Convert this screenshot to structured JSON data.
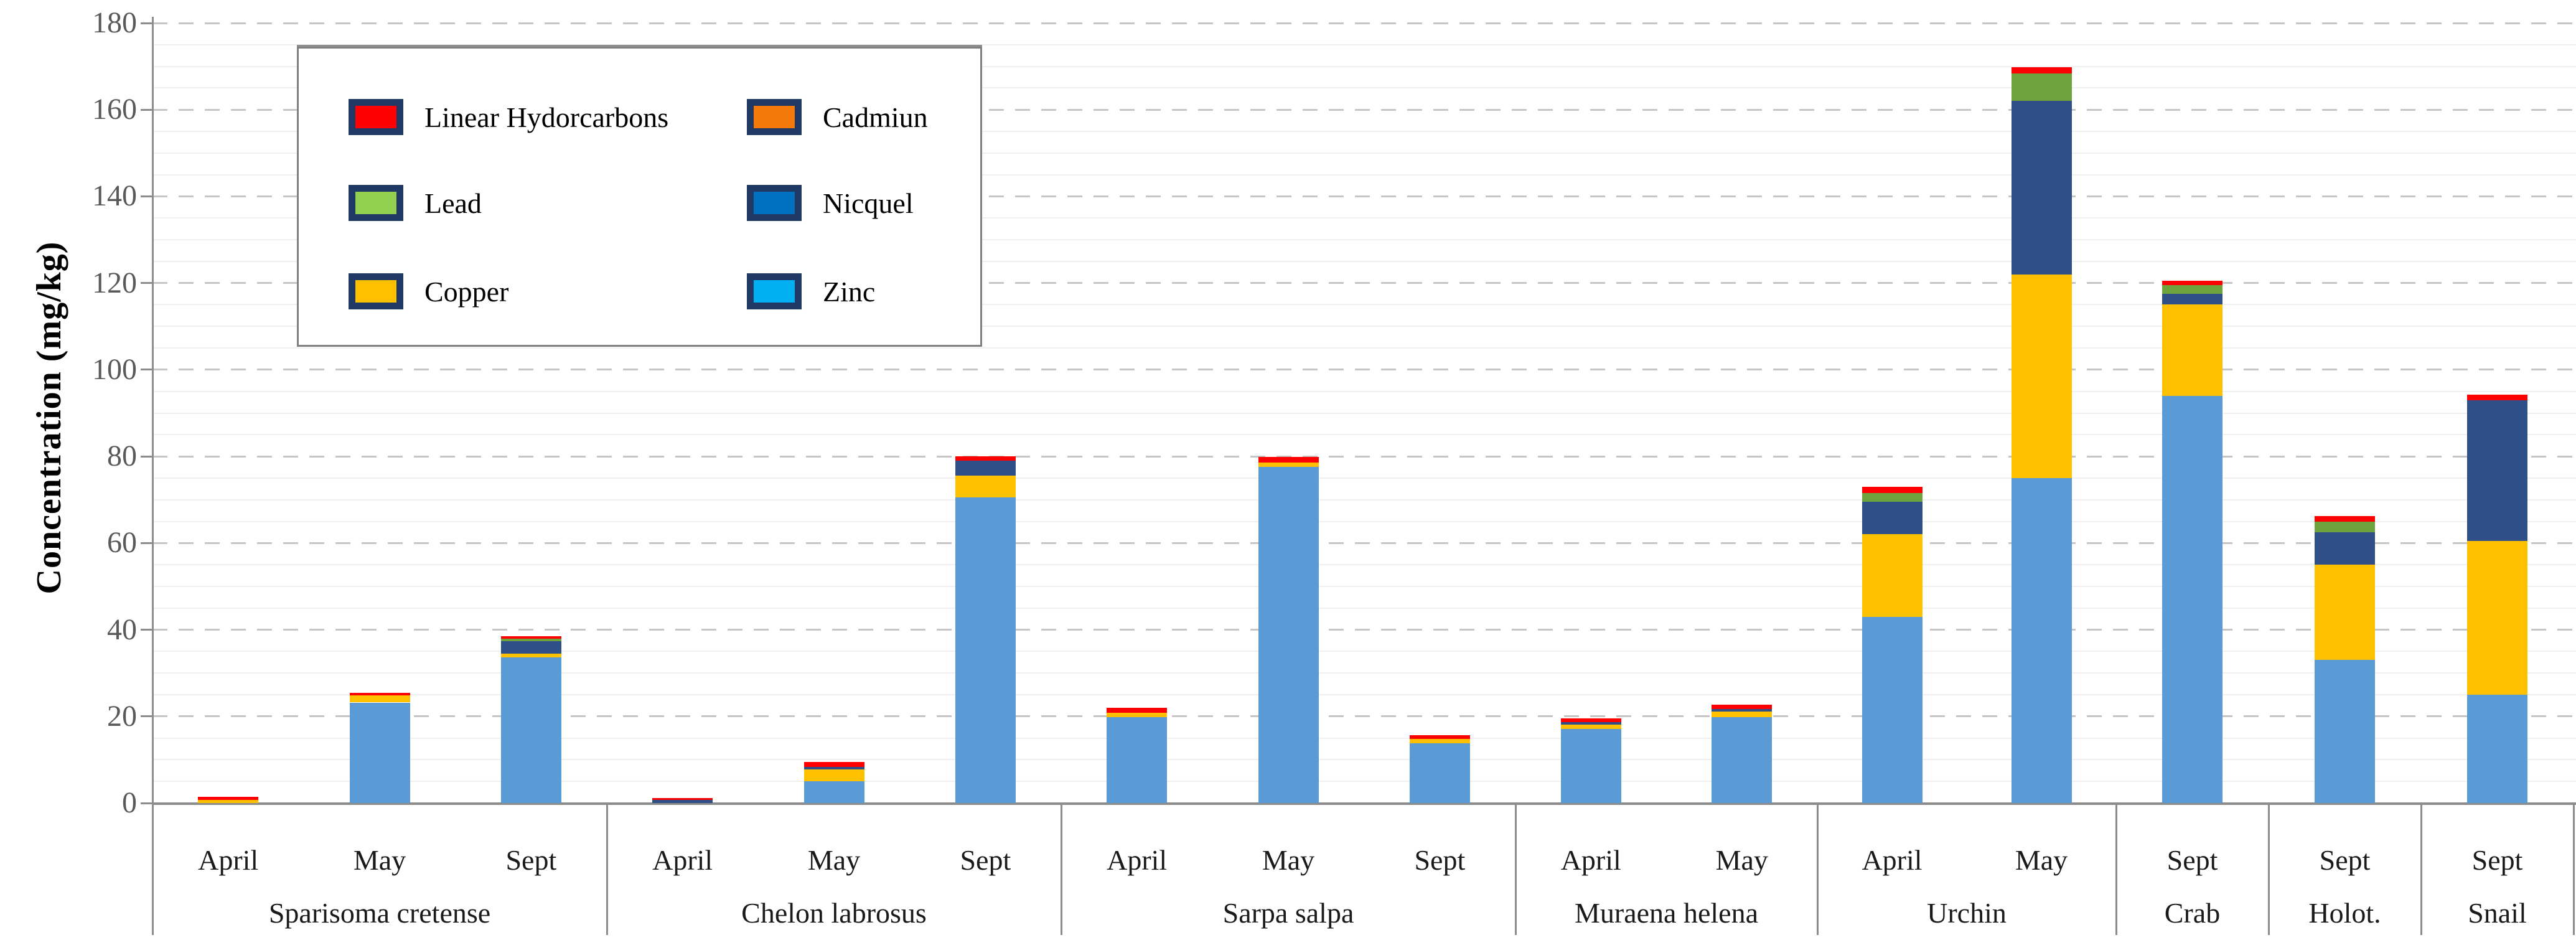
{
  "chart_data": {
    "type": "bar",
    "stacked": true,
    "title": "",
    "xlabel": "",
    "ylabel": "Concentration (mg/kg)",
    "ylim": [
      0,
      180
    ],
    "yticks": [
      0,
      20,
      40,
      60,
      80,
      100,
      120,
      140,
      160,
      180
    ],
    "grid": "horizontal; faint minor lines every 5, gray dashed major lines every 20",
    "legend_position": "top-left inside plot area",
    "stack_order": [
      "zinc",
      "copper",
      "nicquel",
      "lead",
      "cadmiun",
      "linear_hydrocarbons"
    ],
    "series_labels": {
      "linear_hydrocarbons": "Linear Hydorcarbons",
      "cadmiun": "Cadmiun",
      "lead": "Lead",
      "nicquel": "Nicquel",
      "copper": "Copper",
      "zinc": "Zinc"
    },
    "groups": [
      {
        "label": "Sparisoma cretense",
        "bars": [
          {
            "month": "April",
            "values": {
              "zinc": 0,
              "copper": 0.7,
              "nicquel": 0,
              "lead": 0,
              "cadmiun": 0,
              "linear_hydrocarbons": 0.7
            }
          },
          {
            "month": "May",
            "values": {
              "zinc": 23.2,
              "copper": 1.7,
              "nicquel": 0,
              "lead": 0,
              "cadmiun": 0,
              "linear_hydrocarbons": 0.5
            }
          },
          {
            "month": "Sept",
            "values": {
              "zinc": 33.6,
              "copper": 0.9,
              "nicquel": 2.9,
              "lead": 0.5,
              "cadmiun": 0,
              "linear_hydrocarbons": 0.6
            }
          }
        ]
      },
      {
        "label": "Chelon labrosus",
        "bars": [
          {
            "month": "April",
            "values": {
              "zinc": 0,
              "copper": 0,
              "nicquel": 0.7,
              "lead": 0,
              "cadmiun": 0,
              "linear_hydrocarbons": 0.4
            }
          },
          {
            "month": "May",
            "values": {
              "zinc": 5.0,
              "copper": 2.8,
              "nicquel": 0.5,
              "lead": 0,
              "cadmiun": 0,
              "linear_hydrocarbons": 1.2
            }
          },
          {
            "month": "Sept",
            "values": {
              "zinc": 70.5,
              "copper": 5.0,
              "nicquel": 3.5,
              "lead": 0,
              "cadmiun": 0,
              "linear_hydrocarbons": 1.0
            }
          }
        ]
      },
      {
        "label": "Sarpa salpa",
        "bars": [
          {
            "month": "April",
            "values": {
              "zinc": 19.8,
              "copper": 1.0,
              "nicquel": 0,
              "lead": 0,
              "cadmiun": 0,
              "linear_hydrocarbons": 1.2
            }
          },
          {
            "month": "May",
            "values": {
              "zinc": 77.6,
              "copper": 1.0,
              "nicquel": 0,
              "lead": 0,
              "cadmiun": 0,
              "linear_hydrocarbons": 1.3
            }
          },
          {
            "month": "Sept",
            "values": {
              "zinc": 13.8,
              "copper": 1.0,
              "nicquel": 0,
              "lead": 0,
              "cadmiun": 0,
              "linear_hydrocarbons": 0.9
            }
          }
        ]
      },
      {
        "label": "Muraena helena",
        "bars": [
          {
            "month": "April",
            "values": {
              "zinc": 17.1,
              "copper": 1.0,
              "nicquel": 0.6,
              "lead": 0,
              "cadmiun": 0,
              "linear_hydrocarbons": 0.9
            }
          },
          {
            "month": "May",
            "values": {
              "zinc": 19.8,
              "copper": 1.3,
              "nicquel": 0.6,
              "lead": 0,
              "cadmiun": 0,
              "linear_hydrocarbons": 1.0
            }
          }
        ]
      },
      {
        "label": "Urchin",
        "bars": [
          {
            "month": "April",
            "values": {
              "zinc": 43,
              "copper": 19,
              "nicquel": 7.5,
              "lead": 2,
              "cadmiun": 0,
              "linear_hydrocarbons": 1.5
            }
          },
          {
            "month": "May",
            "values": {
              "zinc": 75,
              "copper": 47,
              "nicquel": 40,
              "lead": 6.3,
              "cadmiun": 0,
              "linear_hydrocarbons": 1.5
            }
          }
        ]
      },
      {
        "label": "Crab",
        "bars": [
          {
            "month": "Sept",
            "values": {
              "zinc": 94,
              "copper": 21,
              "nicquel": 2.5,
              "lead": 2,
              "cadmiun": 0,
              "linear_hydrocarbons": 1.0
            }
          }
        ]
      },
      {
        "label": "Holot.",
        "bars": [
          {
            "month": "Sept",
            "values": {
              "zinc": 33,
              "copper": 22,
              "nicquel": 7.5,
              "lead": 2.5,
              "cadmiun": 0,
              "linear_hydrocarbons": 1.2
            }
          }
        ]
      },
      {
        "label": "Snail",
        "bars": [
          {
            "month": "Sept",
            "values": {
              "zinc": 25,
              "copper": 35.5,
              "nicquel": 32.5,
              "lead": 0,
              "cadmiun": 0,
              "linear_hydrocarbons": 1.3
            }
          }
        ]
      }
    ]
  },
  "legend": {
    "swatch_border_color": "#1f3864",
    "items": [
      {
        "key": "linear_hydrocarbons",
        "label": "Linear Hydorcarbons",
        "fill": "#ff0000",
        "column": 1,
        "row": 1
      },
      {
        "key": "cadmiun",
        "label": "Cadmiun",
        "fill": "#f4790b",
        "column": 2,
        "row": 1
      },
      {
        "key": "lead",
        "label": "Lead",
        "fill": "#92d050",
        "column": 1,
        "row": 2
      },
      {
        "key": "nicquel",
        "label": "Nicquel",
        "fill": "#0070c0",
        "column": 2,
        "row": 2
      },
      {
        "key": "copper",
        "label": "Copper",
        "fill": "#ffc000",
        "column": 1,
        "row": 3
      },
      {
        "key": "zinc",
        "label": "Zinc",
        "fill": "#00b0f0",
        "column": 2,
        "row": 3
      }
    ]
  },
  "colors": {
    "bar_zinc": "#5b9bd5",
    "bar_copper": "#ffc000",
    "bar_nicquel": "#2e4f87",
    "bar_lead": "#6fa33d",
    "bar_cadmiun": "#ed7d31",
    "bar_linear_hydrocarbons": "#fe0000",
    "axis_line": "#8c8c8c",
    "tick_label": "#595959",
    "major_grid": "#c6c6c6",
    "minor_grid": "#f0f0f0"
  }
}
